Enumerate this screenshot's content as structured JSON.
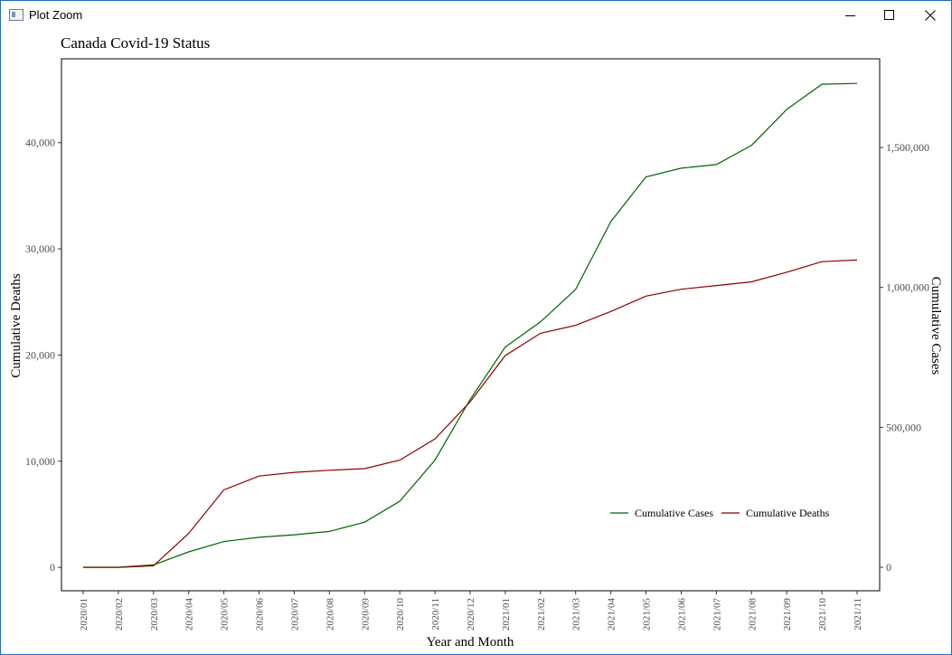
{
  "window": {
    "title": "Plot Zoom"
  },
  "icons": {
    "app": "plot-window-icon",
    "minimize": "minimize-icon",
    "maximize": "maximize-icon",
    "close": "close-icon"
  },
  "colors": {
    "cases": "#006400",
    "deaths": "#8b0000",
    "window_border": "#1f6fbf"
  },
  "chart_data": {
    "type": "line",
    "title": "Canada Covid-19 Status",
    "xlabel": "Year and Month",
    "ylabel_left": "Cumulative Deaths",
    "ylabel_right": "Cumulative Cases",
    "categories": [
      "2020/01",
      "2020/02",
      "2020/03",
      "2020/04",
      "2020/05",
      "2020/06",
      "2020/07",
      "2020/08",
      "2020/09",
      "2020/10",
      "2020/11",
      "2020/12",
      "2021/01",
      "2021/02",
      "2021/03",
      "2021/04",
      "2021/05",
      "2021/06",
      "2021/07",
      "2021/08",
      "2021/09",
      "2021/10",
      "2021/11"
    ],
    "y_left": {
      "range": [
        -2200,
        47900
      ],
      "ticks": [
        0,
        10000,
        20000,
        30000,
        40000
      ],
      "tick_labels": [
        "0",
        "10,000",
        "20,000",
        "30,000",
        "40,000"
      ]
    },
    "y_right": {
      "range": [
        -84000,
        1817000
      ],
      "ticks": [
        0,
        500000,
        1000000,
        1500000
      ],
      "tick_labels": [
        "0",
        "500,000",
        "1,000,000",
        "1,500,000"
      ]
    },
    "series": [
      {
        "name": "Cumulative Cases",
        "axis": "right",
        "color": "#006400",
        "values": [
          4,
          24,
          8500,
          55000,
          92000,
          107000,
          116000,
          128000,
          161000,
          236000,
          383000,
          599000,
          787000,
          877000,
          993000,
          1235000,
          1395000,
          1426000,
          1439000,
          1508000,
          1636000,
          1726000,
          1729000
        ]
      },
      {
        "name": "Cumulative Deaths",
        "axis": "left",
        "color": "#8b0000",
        "values": [
          0,
          0,
          150,
          3200,
          7300,
          8600,
          8950,
          9150,
          9300,
          10100,
          12100,
          15600,
          19950,
          22050,
          22800,
          24100,
          25550,
          26200,
          26550,
          26900,
          27800,
          28800,
          28950
        ]
      }
    ],
    "grid": false,
    "legend": {
      "position": "bottom-right inside",
      "entries": [
        "Cumulative Cases",
        "Cumulative Deaths"
      ]
    }
  }
}
